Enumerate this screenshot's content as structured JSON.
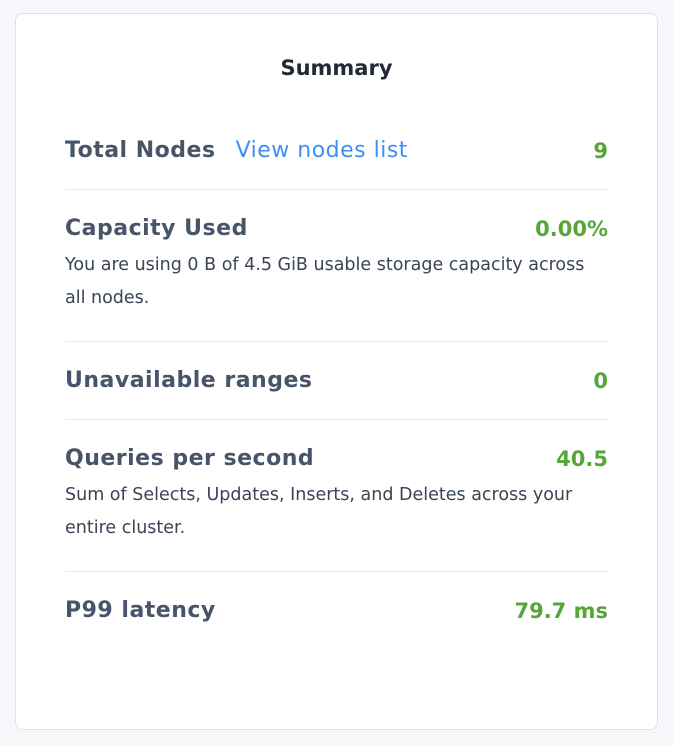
{
  "title": "Summary",
  "rows": [
    {
      "label": "Total Nodes",
      "link": "View nodes list",
      "value": "9"
    },
    {
      "label": "Capacity Used",
      "value": "0.00%",
      "desc": "You are using 0 B of 4.5 GiB usable storage capacity across all nodes."
    },
    {
      "label": "Unavailable ranges",
      "value": "0"
    },
    {
      "label": "Queries per second",
      "value": "40.5",
      "desc": "Sum of Selects, Updates, Inserts, and Deletes across your entire cluster."
    },
    {
      "label": "P99 latency",
      "value": "79.7 ms"
    }
  ]
}
